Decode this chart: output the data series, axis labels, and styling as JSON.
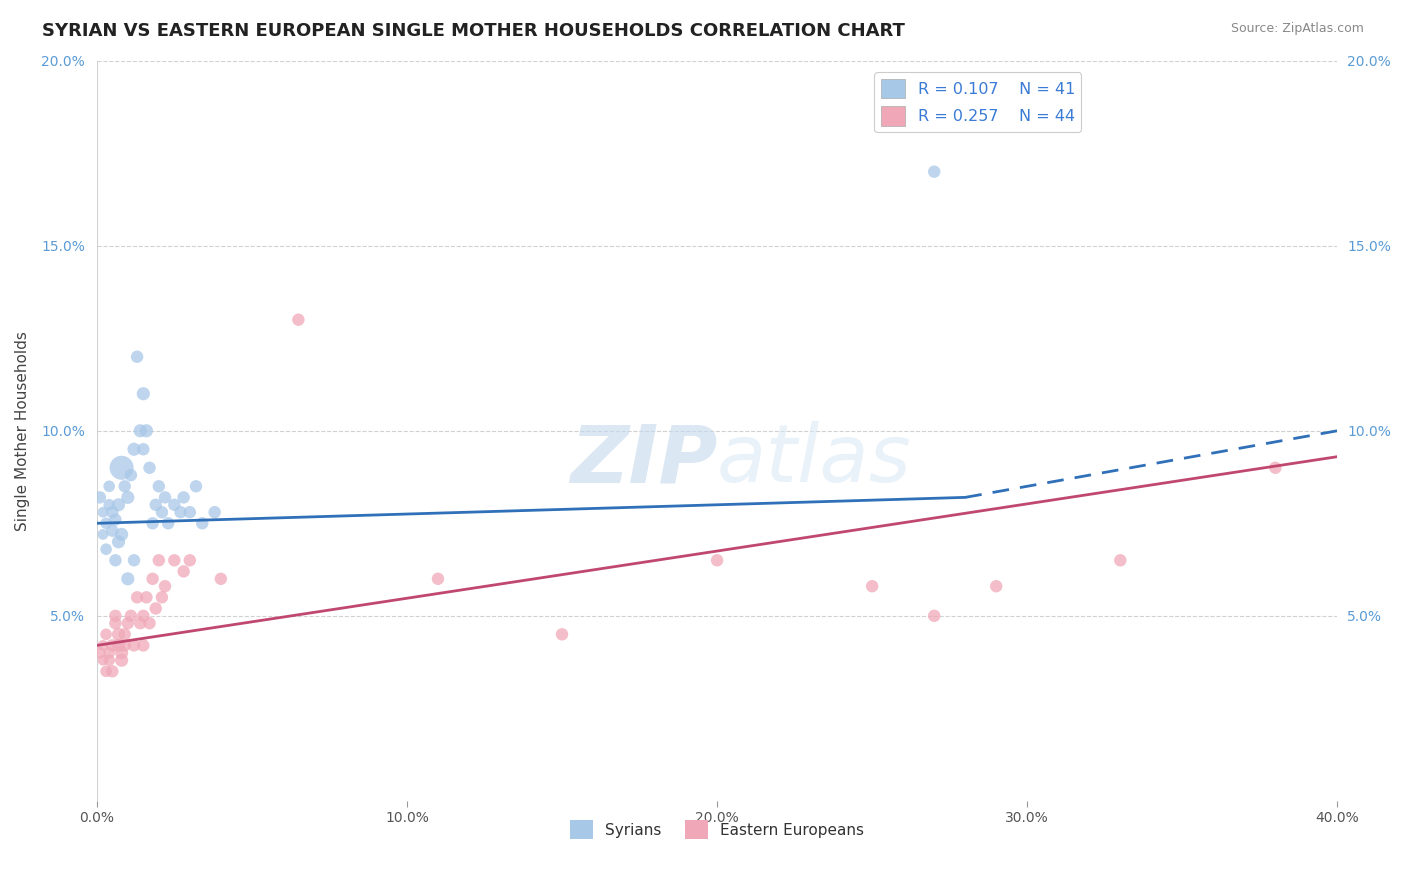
{
  "title": "SYRIAN VS EASTERN EUROPEAN SINGLE MOTHER HOUSEHOLDS CORRELATION CHART",
  "source": "Source: ZipAtlas.com",
  "ylabel": "Single Mother Households",
  "xlim": [
    0.0,
    0.4
  ],
  "ylim": [
    0.0,
    0.2
  ],
  "xticks": [
    0.0,
    0.1,
    0.2,
    0.3,
    0.4
  ],
  "yticks": [
    0.0,
    0.05,
    0.1,
    0.15,
    0.2
  ],
  "syrian_color": "#a8c8e8",
  "eastern_color": "#f0a8b8",
  "syrian_line_color": "#3070b8",
  "eastern_line_color": "#c04870",
  "R_syrian": 0.107,
  "N_syrian": 41,
  "R_eastern": 0.257,
  "N_eastern": 44,
  "legend_labels": [
    "Syrians",
    "Eastern Europeans"
  ],
  "background_color": "#ffffff",
  "grid_color": "#cccccc",
  "title_fontsize": 13,
  "label_fontsize": 11,
  "tick_fontsize": 10,
  "watermark_zip": "ZIP",
  "watermark_atlas": "atlas",
  "syrian_line_solid_end": 0.28,
  "syrian_line_start_y": 0.075,
  "syrian_line_end_y": 0.082,
  "syrian_line_full_end_y": 0.1,
  "eastern_line_start_y": 0.042,
  "eastern_line_end_y": 0.093,
  "syrian_scatter_x": [
    0.001,
    0.002,
    0.002,
    0.003,
    0.003,
    0.004,
    0.004,
    0.005,
    0.005,
    0.006,
    0.006,
    0.007,
    0.007,
    0.008,
    0.008,
    0.009,
    0.01,
    0.01,
    0.011,
    0.012,
    0.012,
    0.013,
    0.014,
    0.015,
    0.015,
    0.016,
    0.017,
    0.018,
    0.019,
    0.02,
    0.021,
    0.022,
    0.023,
    0.025,
    0.027,
    0.028,
    0.03,
    0.032,
    0.034,
    0.038,
    0.27
  ],
  "syrian_scatter_y": [
    0.082,
    0.078,
    0.072,
    0.075,
    0.068,
    0.08,
    0.085,
    0.078,
    0.073,
    0.076,
    0.065,
    0.08,
    0.07,
    0.072,
    0.09,
    0.085,
    0.082,
    0.06,
    0.088,
    0.095,
    0.065,
    0.12,
    0.1,
    0.11,
    0.095,
    0.1,
    0.09,
    0.075,
    0.08,
    0.085,
    0.078,
    0.082,
    0.075,
    0.08,
    0.078,
    0.082,
    0.078,
    0.085,
    0.075,
    0.078,
    0.17
  ],
  "syrian_scatter_sizes": [
    80,
    60,
    60,
    70,
    70,
    70,
    70,
    80,
    80,
    80,
    80,
    90,
    90,
    90,
    300,
    80,
    90,
    90,
    80,
    90,
    80,
    80,
    90,
    90,
    80,
    90,
    80,
    80,
    80,
    80,
    80,
    80,
    80,
    80,
    80,
    80,
    80,
    80,
    80,
    80,
    80
  ],
  "eastern_scatter_x": [
    0.001,
    0.002,
    0.002,
    0.003,
    0.003,
    0.004,
    0.004,
    0.005,
    0.005,
    0.006,
    0.006,
    0.007,
    0.007,
    0.008,
    0.008,
    0.009,
    0.009,
    0.01,
    0.011,
    0.012,
    0.013,
    0.014,
    0.015,
    0.015,
    0.016,
    0.017,
    0.018,
    0.019,
    0.02,
    0.021,
    0.022,
    0.025,
    0.028,
    0.03,
    0.04,
    0.065,
    0.11,
    0.15,
    0.2,
    0.25,
    0.27,
    0.29,
    0.33,
    0.38
  ],
  "eastern_scatter_y": [
    0.04,
    0.038,
    0.042,
    0.035,
    0.045,
    0.04,
    0.038,
    0.042,
    0.035,
    0.048,
    0.05,
    0.042,
    0.045,
    0.04,
    0.038,
    0.042,
    0.045,
    0.048,
    0.05,
    0.042,
    0.055,
    0.048,
    0.05,
    0.042,
    0.055,
    0.048,
    0.06,
    0.052,
    0.065,
    0.055,
    0.058,
    0.065,
    0.062,
    0.065,
    0.06,
    0.13,
    0.06,
    0.045,
    0.065,
    0.058,
    0.05,
    0.058,
    0.065,
    0.09
  ],
  "eastern_scatter_sizes": [
    70,
    60,
    60,
    70,
    70,
    70,
    70,
    80,
    80,
    80,
    80,
    90,
    90,
    90,
    90,
    80,
    80,
    80,
    80,
    80,
    80,
    80,
    80,
    80,
    80,
    80,
    80,
    80,
    80,
    80,
    80,
    80,
    80,
    80,
    80,
    80,
    80,
    80,
    80,
    80,
    80,
    80,
    80,
    80
  ]
}
